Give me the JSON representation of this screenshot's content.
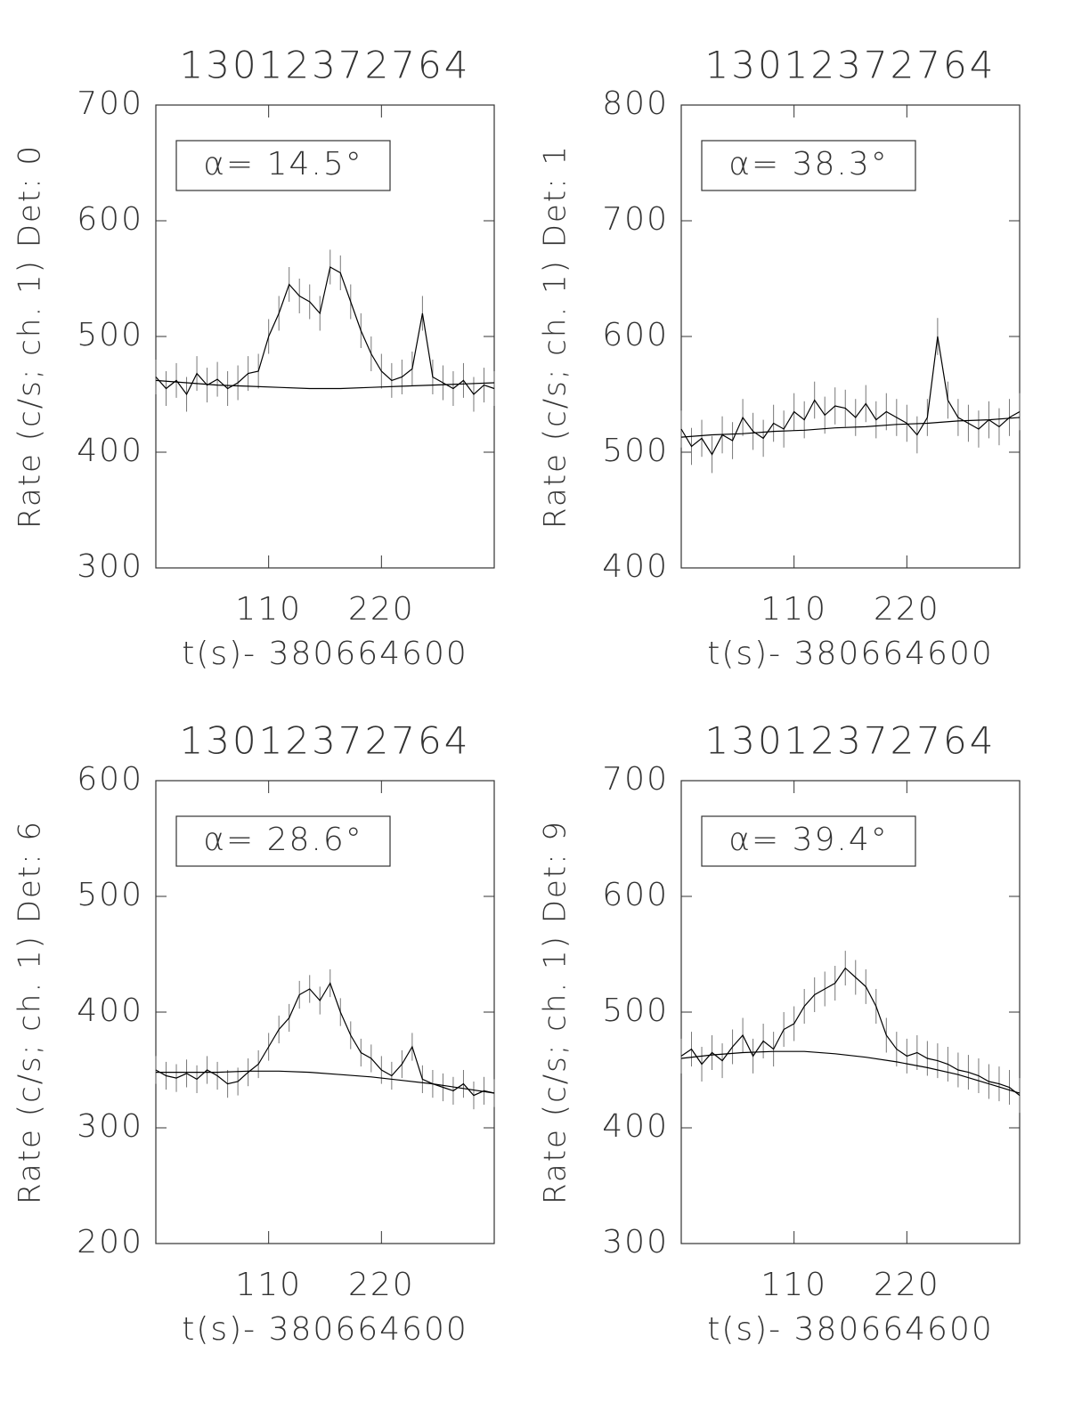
{
  "chart_data": [
    {
      "type": "line",
      "title": "13012372764",
      "annotation": "α= 14.5°",
      "xlabel": "t(s)- 380664600",
      "ylabel": "Rate (c/s; ch. 1) Det: 0",
      "xlim": [
        0,
        330
      ],
      "xticks": [
        110,
        220
      ],
      "ylim": [
        300,
        700
      ],
      "yticks": [
        300,
        400,
        500,
        600,
        700
      ],
      "x": [
        0,
        10,
        20,
        30,
        40,
        50,
        60,
        70,
        80,
        90,
        100,
        110,
        120,
        130,
        140,
        150,
        160,
        170,
        180,
        190,
        200,
        210,
        220,
        230,
        240,
        250,
        260,
        270,
        280,
        290,
        300,
        310,
        320,
        330
      ],
      "series": [
        {
          "color": "#000000",
          "error": 15,
          "values": [
            465,
            455,
            462,
            450,
            468,
            458,
            463,
            455,
            460,
            468,
            470,
            500,
            520,
            545,
            535,
            530,
            520,
            560,
            555,
            530,
            505,
            485,
            470,
            462,
            465,
            472,
            520,
            465,
            460,
            455,
            462,
            450,
            458,
            455
          ]
        },
        {
          "color": "#000000",
          "x": [
            0,
            30,
            60,
            90,
            120,
            150,
            180,
            210,
            240,
            270,
            300,
            330
          ],
          "values": [
            462,
            460,
            458,
            457,
            456,
            455,
            455,
            456,
            457,
            458,
            459,
            460
          ]
        }
      ]
    },
    {
      "type": "line",
      "title": "13012372764",
      "annotation": "α= 38.3°",
      "xlabel": "t(s)- 380664600",
      "ylabel": "Rate (c/s; ch. 1) Det: 1",
      "xlim": [
        0,
        330
      ],
      "xticks": [
        110,
        220
      ],
      "ylim": [
        400,
        800
      ],
      "yticks": [
        400,
        500,
        600,
        700,
        800
      ],
      "x": [
        0,
        10,
        20,
        30,
        40,
        50,
        60,
        70,
        80,
        90,
        100,
        110,
        120,
        130,
        140,
        150,
        160,
        170,
        180,
        190,
        200,
        210,
        220,
        230,
        240,
        250,
        260,
        270,
        280,
        290,
        300,
        310,
        320,
        330
      ],
      "series": [
        {
          "color": "#000000",
          "error": 16,
          "values": [
            520,
            505,
            512,
            498,
            515,
            510,
            530,
            518,
            512,
            525,
            520,
            535,
            528,
            545,
            532,
            540,
            538,
            530,
            542,
            528,
            535,
            530,
            525,
            515,
            530,
            600,
            545,
            530,
            525,
            520,
            528,
            522,
            530,
            535
          ]
        },
        {
          "color": "#000000",
          "x": [
            0,
            30,
            60,
            90,
            120,
            150,
            180,
            210,
            240,
            270,
            300,
            330
          ],
          "values": [
            513,
            515,
            516,
            518,
            519,
            521,
            522,
            524,
            525,
            527,
            528,
            530
          ]
        }
      ]
    },
    {
      "type": "line",
      "title": "13012372764",
      "annotation": "α= 28.6°",
      "xlabel": "t(s)- 380664600",
      "ylabel": "Rate (c/s; ch. 1) Det: 6",
      "xlim": [
        0,
        330
      ],
      "xticks": [
        110,
        220
      ],
      "ylim": [
        200,
        600
      ],
      "yticks": [
        200,
        300,
        400,
        500,
        600
      ],
      "x": [
        0,
        10,
        20,
        30,
        40,
        50,
        60,
        70,
        80,
        90,
        100,
        110,
        120,
        130,
        140,
        150,
        160,
        170,
        180,
        190,
        200,
        210,
        220,
        230,
        240,
        250,
        260,
        270,
        280,
        290,
        300,
        310,
        320,
        330
      ],
      "series": [
        {
          "color": "#000000",
          "error": 12,
          "values": [
            350,
            345,
            343,
            347,
            342,
            350,
            345,
            338,
            340,
            348,
            355,
            370,
            385,
            395,
            415,
            420,
            410,
            425,
            400,
            380,
            365,
            360,
            350,
            345,
            355,
            370,
            342,
            338,
            335,
            332,
            338,
            328,
            332,
            330
          ]
        },
        {
          "color": "#000000",
          "x": [
            0,
            30,
            60,
            90,
            120,
            150,
            180,
            210,
            240,
            270,
            300,
            330
          ],
          "values": [
            348,
            348,
            348,
            349,
            349,
            348,
            346,
            344,
            341,
            338,
            334,
            330
          ]
        }
      ]
    },
    {
      "type": "line",
      "title": "13012372764",
      "annotation": "α= 39.4°",
      "xlabel": "t(s)- 380664600",
      "ylabel": "Rate (c/s; ch. 1) Det: 9",
      "xlim": [
        0,
        330
      ],
      "xticks": [
        110,
        220
      ],
      "ylim": [
        300,
        700
      ],
      "yticks": [
        300,
        400,
        500,
        600,
        700
      ],
      "x": [
        0,
        10,
        20,
        30,
        40,
        50,
        60,
        70,
        80,
        90,
        100,
        110,
        120,
        130,
        140,
        150,
        160,
        170,
        180,
        190,
        200,
        210,
        220,
        230,
        240,
        250,
        260,
        270,
        280,
        290,
        300,
        310,
        320,
        330
      ],
      "series": [
        {
          "color": "#000000",
          "error": 15,
          "values": [
            462,
            468,
            455,
            465,
            458,
            470,
            480,
            462,
            475,
            468,
            485,
            490,
            505,
            515,
            520,
            525,
            538,
            530,
            522,
            505,
            480,
            468,
            462,
            465,
            460,
            458,
            455,
            450,
            448,
            445,
            440,
            438,
            435,
            428
          ]
        },
        {
          "color": "#000000",
          "x": [
            0,
            30,
            60,
            90,
            120,
            150,
            180,
            210,
            240,
            270,
            300,
            330
          ],
          "values": [
            460,
            463,
            465,
            466,
            466,
            464,
            461,
            457,
            452,
            446,
            438,
            430
          ]
        }
      ]
    }
  ]
}
